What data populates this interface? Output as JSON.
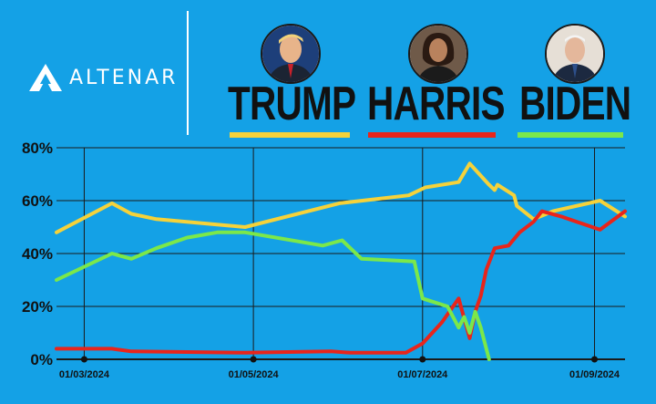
{
  "brand": {
    "logo_text": "ALTENAR"
  },
  "candidates": [
    {
      "name": "TRUMP",
      "color": "#f5d23a",
      "photo": "trump-photo"
    },
    {
      "name": "HARRIS",
      "color": "#e8251b",
      "photo": "harris-photo"
    },
    {
      "name": "BIDEN",
      "color": "#7be84a",
      "photo": "biden-photo"
    }
  ],
  "chart_data": {
    "type": "line",
    "title": "",
    "xlabel": "",
    "ylabel": "",
    "ylim": [
      0,
      80
    ],
    "y_ticks": [
      "0%",
      "20%",
      "40%",
      "60%",
      "80%"
    ],
    "x_ticks": [
      "01/03/2024",
      "01/05/2024",
      "01/07/2024",
      "01/09/2024"
    ],
    "x_tick_dates": [
      "2024-03-01",
      "2024-05-01",
      "2024-07-01",
      "2024-09-01"
    ],
    "xlim": [
      "2024-02-20",
      "2024-09-12"
    ],
    "grid": true,
    "series": [
      {
        "name": "TRUMP",
        "color": "#f5d23a",
        "x": [
          "2024-02-20",
          "2024-03-11",
          "2024-03-18",
          "2024-03-27",
          "2024-04-28",
          "2024-06-01",
          "2024-06-26",
          "2024-07-02",
          "2024-07-14",
          "2024-07-18",
          "2024-07-25",
          "2024-07-27",
          "2024-07-28",
          "2024-08-03",
          "2024-08-04",
          "2024-08-10",
          "2024-08-17",
          "2024-09-03",
          "2024-09-12"
        ],
        "values": [
          48,
          59,
          55,
          53,
          50,
          59,
          62,
          65,
          67,
          74,
          66,
          64,
          66,
          62,
          58,
          53,
          56,
          60,
          54
        ]
      },
      {
        "name": "HARRIS",
        "color": "#e8251b",
        "x": [
          "2024-02-20",
          "2024-03-11",
          "2024-03-18",
          "2024-04-28",
          "2024-05-29",
          "2024-06-05",
          "2024-06-25",
          "2024-07-01",
          "2024-07-08",
          "2024-07-12",
          "2024-07-14",
          "2024-07-18",
          "2024-07-20",
          "2024-07-22",
          "2024-07-24",
          "2024-07-27",
          "2024-08-01",
          "2024-08-05",
          "2024-08-10",
          "2024-08-13",
          "2024-08-20",
          "2024-09-03",
          "2024-09-12"
        ],
        "values": [
          4,
          4,
          3,
          2.5,
          3,
          2.5,
          2.5,
          6,
          14,
          20,
          23,
          8,
          18,
          24,
          34,
          42,
          43,
          48,
          52,
          56,
          54,
          49,
          56
        ]
      },
      {
        "name": "BIDEN",
        "color": "#7be84a",
        "x": [
          "2024-02-20",
          "2024-03-11",
          "2024-03-18",
          "2024-03-27",
          "2024-04-07",
          "2024-04-18",
          "2024-04-28",
          "2024-05-26",
          "2024-06-02",
          "2024-06-09",
          "2024-06-28",
          "2024-07-01",
          "2024-07-10",
          "2024-07-14",
          "2024-07-16",
          "2024-07-18",
          "2024-07-20",
          "2024-07-22",
          "2024-07-25"
        ],
        "values": [
          30,
          40,
          38,
          42,
          46,
          48,
          48,
          43,
          45,
          38,
          37,
          23,
          20,
          12,
          16,
          10,
          18,
          12,
          0
        ]
      }
    ]
  }
}
